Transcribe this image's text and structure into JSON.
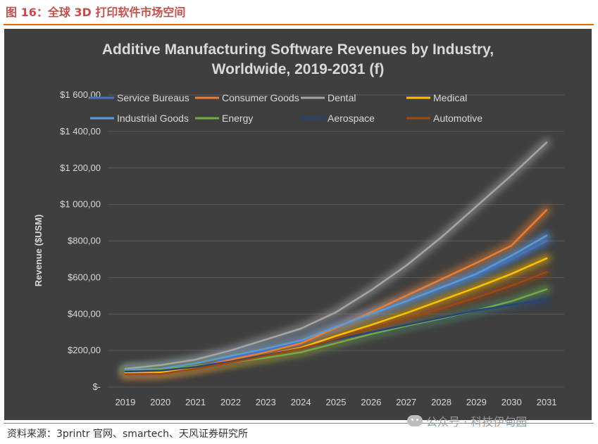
{
  "figure": {
    "caption": "图 16：全球 3D 打印软件市场空间",
    "source": "资料来源：3printr 官网、smartech、天风证券研究所",
    "watermark": "公众号 · 科技伊甸园"
  },
  "chart_data": {
    "type": "line",
    "title_line1": "Additive Manufacturing Software Revenues by Industry,",
    "title_line2": "Worldwide, 2019-2031 (f)",
    "ylabel": "Revenue ($USM)",
    "xlabel": "",
    "ylim": [
      0,
      1600
    ],
    "grid": true,
    "legend_position": "top",
    "y_ticks": [
      {
        "value": 0,
        "label": "$-"
      },
      {
        "value": 200,
        "label": "$200,00"
      },
      {
        "value": 400,
        "label": "$400,00"
      },
      {
        "value": 600,
        "label": "$600,00"
      },
      {
        "value": 800,
        "label": "$800,00"
      },
      {
        "value": 1000,
        "label": "$1 000,00"
      },
      {
        "value": 1200,
        "label": "$1 200,00"
      },
      {
        "value": 1400,
        "label": "$1 400,00"
      },
      {
        "value": 1600,
        "label": "$1 600,00"
      }
    ],
    "x": [
      "2019",
      "2020",
      "2021",
      "2022",
      "2023",
      "2024",
      "2025",
      "2026",
      "2027",
      "2028",
      "2029",
      "2030",
      "2031"
    ],
    "series": [
      {
        "name": "Service Bureaus",
        "color": "#4472c4",
        "values": [
          78,
          80,
          105,
          160,
          200,
          250,
          330,
          400,
          470,
          540,
          615,
          700,
          800
        ]
      },
      {
        "name": "Consumer Goods",
        "color": "#ed7d31",
        "values": [
          72,
          76,
          105,
          150,
          190,
          240,
          325,
          410,
          500,
          590,
          680,
          775,
          970
        ]
      },
      {
        "name": "Dental",
        "color": "#a5a5a5",
        "values": [
          100,
          120,
          150,
          200,
          260,
          320,
          410,
          530,
          665,
          820,
          990,
          1160,
          1340
        ]
      },
      {
        "name": "Medical",
        "color": "#ffc000",
        "values": [
          80,
          82,
          108,
          140,
          175,
          215,
          280,
          340,
          405,
          475,
          545,
          620,
          705
        ]
      },
      {
        "name": "Industrial Goods",
        "color": "#5b9bd5",
        "values": [
          95,
          100,
          130,
          170,
          210,
          255,
          330,
          400,
          470,
          545,
          620,
          720,
          830
        ]
      },
      {
        "name": "Energy",
        "color": "#70ad47",
        "values": [
          90,
          95,
          115,
          135,
          160,
          190,
          240,
          290,
          335,
          375,
          420,
          470,
          535
        ]
      },
      {
        "name": "Aerospace",
        "color": "#264478",
        "values": [
          85,
          90,
          110,
          140,
          175,
          210,
          260,
          300,
          340,
          380,
          420,
          450,
          480
        ]
      },
      {
        "name": "Automotive",
        "color": "#9e480e",
        "values": [
          70,
          72,
          100,
          135,
          170,
          210,
          265,
          320,
          375,
          430,
          490,
          555,
          630
        ]
      }
    ]
  }
}
